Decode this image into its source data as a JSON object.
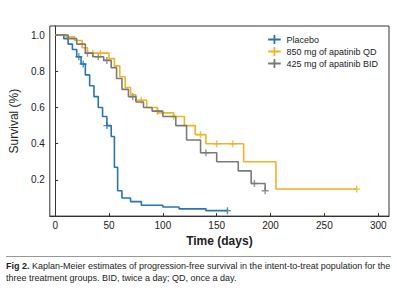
{
  "chart_data": {
    "type": "kaplan_meier",
    "x_label": "Time (days)",
    "y_label": "Survival (%)",
    "caption_label": "Fig 2.",
    "caption": "Kaplan-Meier estimates of progression-free survival in the intent-to-treat population for the three treatment groups. BID, twice a day; QD, once a day.",
    "xlim": [
      -5,
      310
    ],
    "xticks": [
      0,
      50,
      100,
      150,
      200,
      250,
      300
    ],
    "ylim": [
      0,
      1.05
    ],
    "yticks": [
      0.2,
      0.4,
      0.6,
      0.8,
      {
        "value": 1,
        "label": "1.0"
      }
    ],
    "grid": false,
    "legend": "upper right",
    "series": [
      {
        "name": "Placebo",
        "color": "#2a74b0",
        "marker": "plus",
        "x": [
          0,
          8,
          12,
          16,
          20,
          24,
          28,
          32,
          36,
          40,
          44,
          48,
          52,
          55,
          58,
          62,
          70,
          80,
          100,
          115,
          140,
          160
        ],
        "values": [
          1.0,
          0.98,
          0.95,
          0.92,
          0.88,
          0.84,
          0.78,
          0.72,
          0.66,
          0.6,
          0.55,
          0.5,
          0.44,
          0.27,
          0.14,
          0.1,
          0.08,
          0.06,
          0.05,
          0.04,
          0.03,
          0.03
        ],
        "censor_x": [
          22,
          26,
          48,
          160
        ],
        "censor_values": [
          0.88,
          0.84,
          0.5,
          0.03
        ]
      },
      {
        "name": "850 mg of apatinib QD",
        "color": "#f0b323",
        "marker": "plus",
        "x": [
          0,
          10,
          18,
          25,
          30,
          50,
          55,
          60,
          65,
          70,
          75,
          85,
          95,
          110,
          120,
          130,
          140,
          175,
          205,
          280
        ],
        "values": [
          1.0,
          0.99,
          0.97,
          0.93,
          0.9,
          0.87,
          0.83,
          0.77,
          0.71,
          0.67,
          0.64,
          0.6,
          0.57,
          0.55,
          0.5,
          0.45,
          0.4,
          0.3,
          0.15,
          0.15
        ],
        "censor_x": [
          35,
          42,
          80,
          110,
          135,
          150,
          165,
          280
        ],
        "censor_values": [
          0.9,
          0.9,
          0.64,
          0.55,
          0.45,
          0.4,
          0.4,
          0.15
        ]
      },
      {
        "name": "425 mg of apatinib BID",
        "color": "#7a7a7a",
        "marker": "plus",
        "x": [
          0,
          12,
          20,
          28,
          35,
          45,
          52,
          57,
          62,
          68,
          75,
          82,
          90,
          100,
          112,
          122,
          135,
          150,
          170,
          182,
          195
        ],
        "values": [
          1.0,
          0.98,
          0.95,
          0.9,
          0.88,
          0.86,
          0.82,
          0.76,
          0.7,
          0.66,
          0.63,
          0.6,
          0.58,
          0.55,
          0.5,
          0.42,
          0.35,
          0.3,
          0.25,
          0.18,
          0.14
        ],
        "censor_x": [
          30,
          40,
          48,
          72,
          95,
          140,
          185,
          195
        ],
        "censor_values": [
          0.9,
          0.88,
          0.86,
          0.66,
          0.58,
          0.35,
          0.18,
          0.14
        ]
      }
    ]
  }
}
